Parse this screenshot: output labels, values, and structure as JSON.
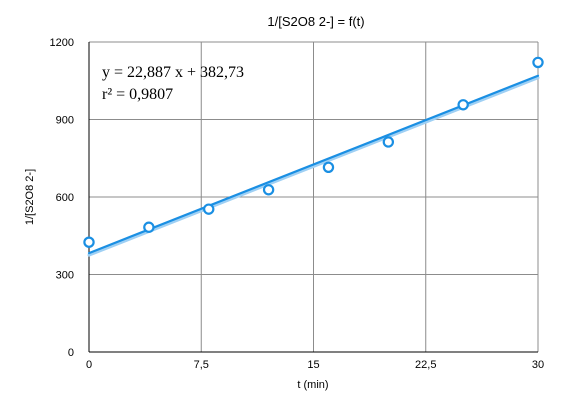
{
  "chart_data": {
    "type": "scatter",
    "title": "1/[S2O8 2-] = f(t)",
    "xlabel": "t (min)",
    "ylabel": "1/[S2O8 2-]",
    "xlim": [
      0,
      30
    ],
    "ylim": [
      0,
      1200
    ],
    "x_ticks": [
      0,
      7.5,
      15,
      22.5,
      30
    ],
    "y_ticks": [
      0,
      300,
      600,
      900,
      1200
    ],
    "x_tick_labels": [
      "0",
      "7,5",
      "15",
      "22,5",
      "30"
    ],
    "y_tick_labels": [
      "0",
      "300",
      "600",
      "900",
      "1200"
    ],
    "grid": true,
    "series": [
      {
        "x": [
          0,
          4,
          8,
          12,
          16,
          20,
          25,
          30
        ],
        "y": [
          425,
          483,
          553,
          628,
          715,
          813,
          957,
          1121
        ],
        "color": "#1a8fe3",
        "marker": "circle-open"
      }
    ],
    "trendline": {
      "slope": 22.887,
      "intercept": 382.73,
      "x_range": [
        0,
        30
      ],
      "color": "#1a8fe3",
      "equation_label": "y = 22,887 x + 382,73",
      "r2_label": "r² = 0,9807"
    }
  }
}
